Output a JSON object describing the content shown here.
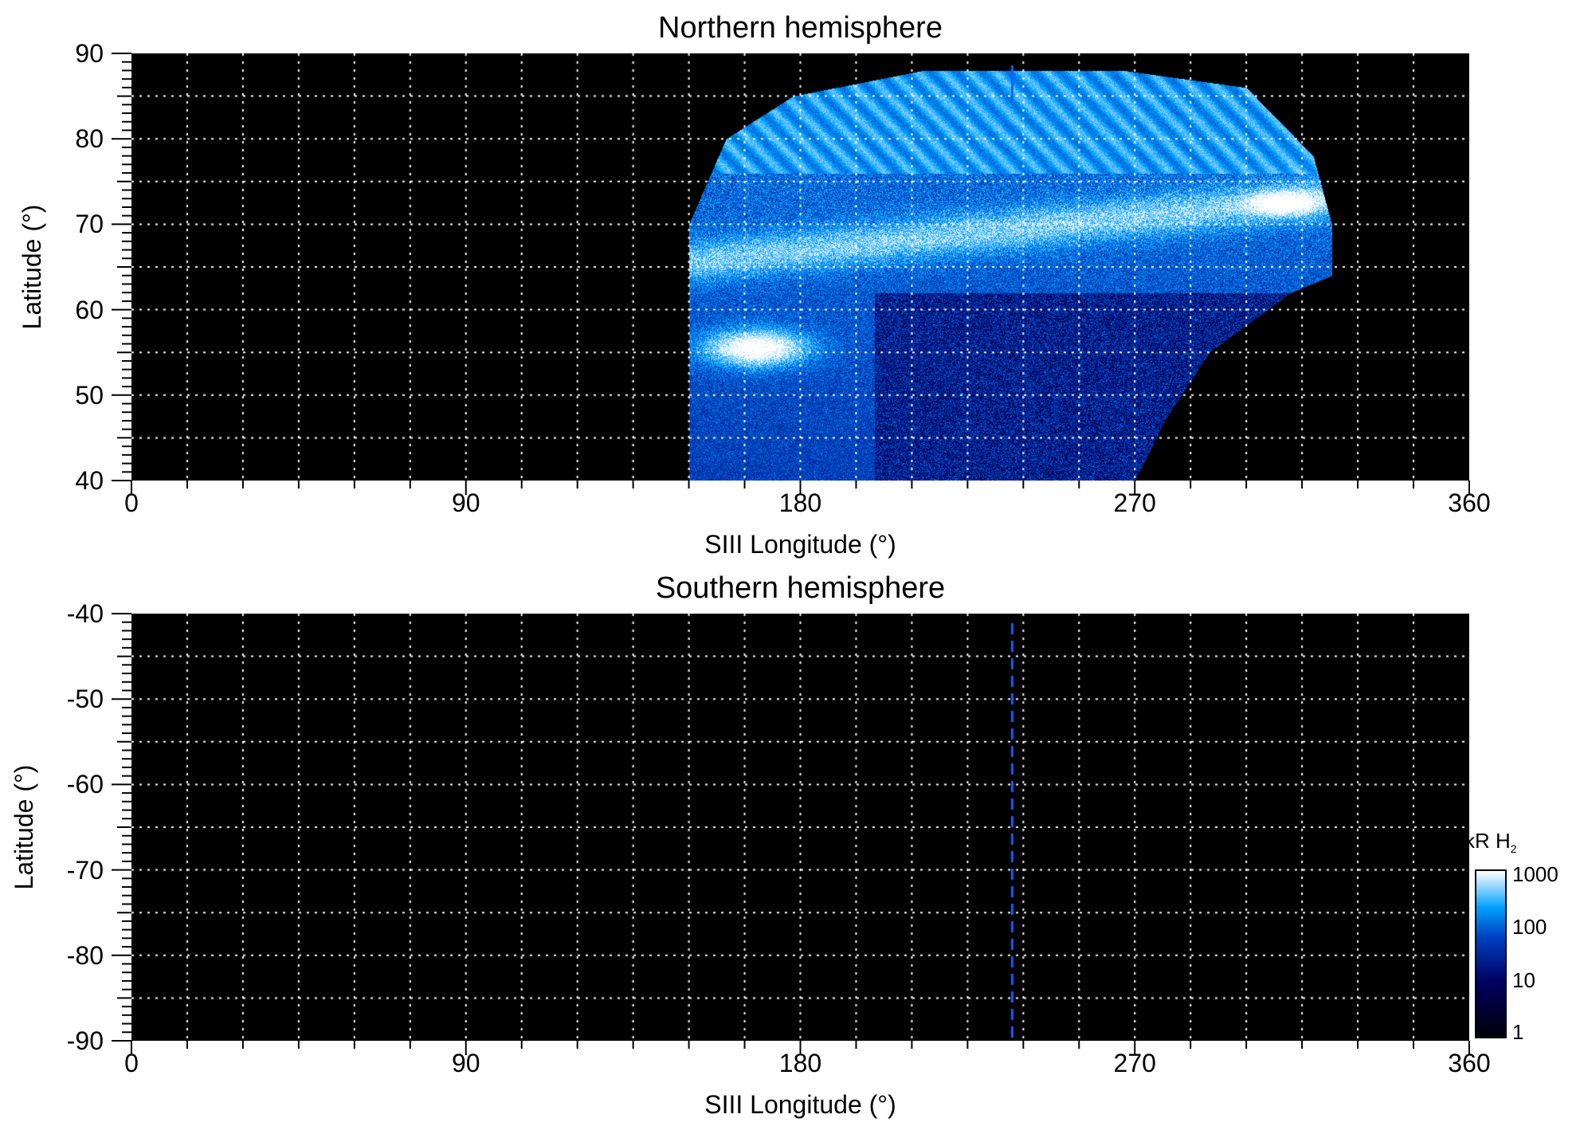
{
  "chart_data": [
    {
      "type": "heatmap",
      "title": "Northern hemisphere",
      "xlabel": "SIII Longitude (°)",
      "ylabel": "Latitude (°)",
      "xlim": [
        0,
        360
      ],
      "ylim": [
        40,
        90
      ],
      "xticks": [
        "0",
        "90",
        "180",
        "270",
        "360"
      ],
      "yticks": [
        "40",
        "50",
        "60",
        "70",
        "80",
        "90"
      ],
      "grid": true,
      "grid_spacing": {
        "longitude": 15,
        "latitude": 5
      },
      "coverage_boundary_lon_lat": [
        [
          150,
          40
        ],
        [
          150,
          70
        ],
        [
          160,
          80
        ],
        [
          178,
          85
        ],
        [
          213,
          88
        ],
        [
          267,
          88
        ],
        [
          300,
          86
        ],
        [
          318,
          78
        ],
        [
          323,
          70
        ],
        [
          323,
          64
        ],
        [
          312,
          62
        ],
        [
          290,
          55
        ],
        [
          278,
          47
        ],
        [
          270,
          40
        ]
      ],
      "bright_features": [
        {
          "lon": [
            155,
            190
          ],
          "lat": [
            53,
            58
          ]
        },
        {
          "lon": [
            160,
            320
          ],
          "lat": [
            66,
            74
          ]
        },
        {
          "lon": [
            300,
            318
          ],
          "lat": [
            71,
            74
          ]
        }
      ],
      "marker_longitude": 237
    },
    {
      "type": "heatmap",
      "title": "Southern hemisphere",
      "xlabel": "SIII Longitude (°)",
      "ylabel": "Latitude (°)",
      "xlim": [
        0,
        360
      ],
      "ylim": [
        -90,
        -40
      ],
      "xticks": [
        "0",
        "90",
        "180",
        "270",
        "360"
      ],
      "yticks": [
        "-40",
        "-50",
        "-60",
        "-70",
        "-80",
        "-90"
      ],
      "grid": true,
      "grid_spacing": {
        "longitude": 15,
        "latitude": 5
      },
      "marker_longitude": 237
    }
  ],
  "colorbar": {
    "label": "kR H",
    "label_sub": "2",
    "scale": "log",
    "ticks": [
      "1000",
      "100",
      "10",
      "1"
    ],
    "range": [
      1,
      1000
    ],
    "colors": [
      "#000008",
      "#000060",
      "#0040c0",
      "#00a0ff",
      "#ffffff"
    ]
  }
}
